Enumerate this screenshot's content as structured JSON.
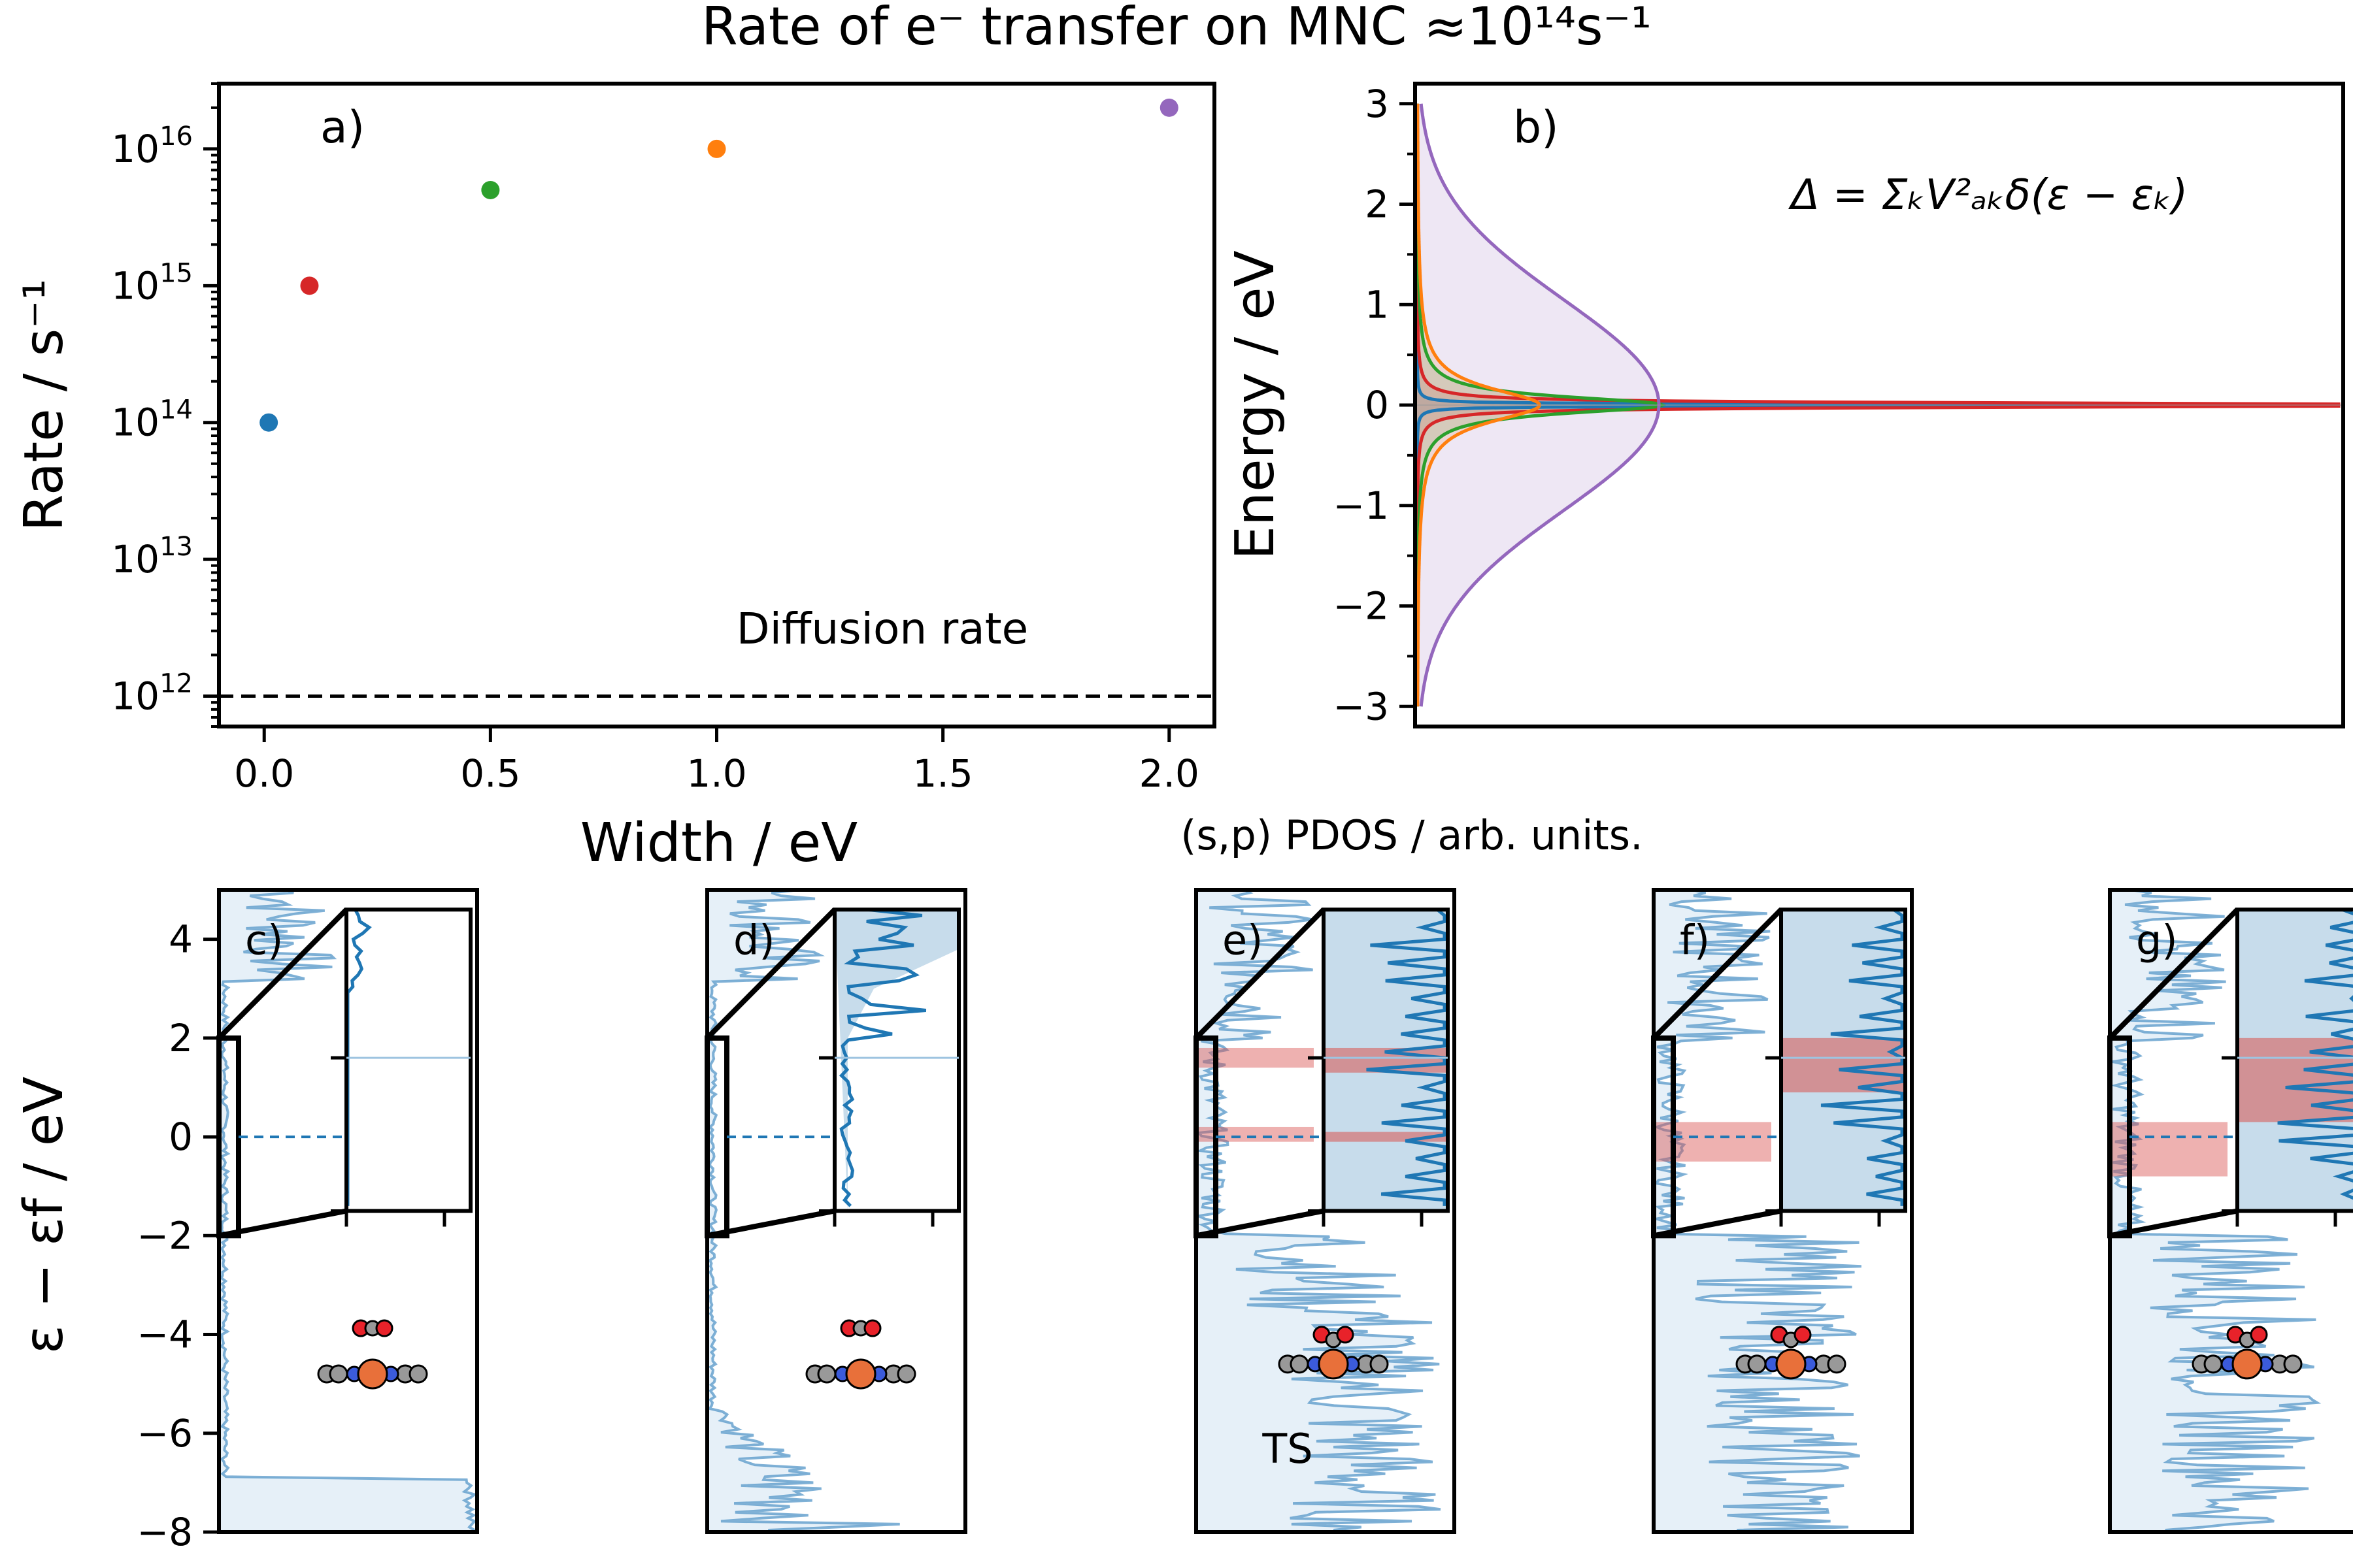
{
  "figure": {
    "title": "Rate of e⁻ transfer on MNC ≈10¹⁴s⁻¹",
    "colors": [
      "#1f77b4",
      "#d62728",
      "#2ca02c",
      "#ff7f0e",
      "#9467bd"
    ],
    "pdos_color": "#4a90c4",
    "highlight_color": "#d9534f"
  },
  "chart_data": [
    {
      "id": "a",
      "type": "scatter",
      "panel_label": "a)",
      "xlabel": "Width / eV",
      "ylabel": "Rate / s⁻¹",
      "yscale": "log",
      "xlim": [
        -0.1,
        2.1
      ],
      "ylim": [
        600000000000.0,
        3e+16
      ],
      "xticks": [
        "0.0",
        "0.5",
        "1.0",
        "1.5",
        "2.0"
      ],
      "yticks": [
        {
          "mantissa": "10",
          "exp": "12",
          "value": 1000000000000.0
        },
        {
          "mantissa": "10",
          "exp": "13",
          "value": 10000000000000.0
        },
        {
          "mantissa": "10",
          "exp": "14",
          "value": 100000000000000.0
        },
        {
          "mantissa": "10",
          "exp": "15",
          "value": 1000000000000000.0
        },
        {
          "mantissa": "10",
          "exp": "16",
          "value": 1e+16
        }
      ],
      "points": [
        {
          "x": 0.01,
          "y": 100000000000000.0,
          "color": "#1f77b4"
        },
        {
          "x": 0.1,
          "y": 1000000000000000.0,
          "color": "#d62728"
        },
        {
          "x": 0.5,
          "y": 5000000000000000.0,
          "color": "#2ca02c"
        },
        {
          "x": 1.0,
          "y": 1e+16,
          "color": "#ff7f0e"
        },
        {
          "x": 2.0,
          "y": 2e+16,
          "color": "#9467bd"
        }
      ],
      "reference_line": {
        "label": "Diffusion rate",
        "y": 1000000000000.0,
        "style": "dashed"
      }
    },
    {
      "id": "b",
      "type": "area",
      "panel_label": "b)",
      "xlabel": "(s,p) PDOS / arb. units.",
      "ylabel": "Energy / eV",
      "ylim": [
        -3.2,
        3.2
      ],
      "yticks": [
        "−3",
        "−2",
        "−1",
        "0",
        "1",
        "2",
        "3"
      ],
      "ytick_values": [
        -3,
        -2,
        -1,
        0,
        1,
        2,
        3
      ],
      "annotation": "Δ = ΣₖV²ₐₖδ(ε − εₖ)",
      "series": [
        {
          "width": 0.01,
          "color": "#1f77b4",
          "shape": "lorentzian"
        },
        {
          "width": 0.1,
          "color": "#d62728",
          "shape": "lorentzian"
        },
        {
          "width": 0.5,
          "color": "#2ca02c",
          "shape": "lorentzian"
        },
        {
          "width": 1.0,
          "color": "#ff7f0e",
          "shape": "lorentzian"
        },
        {
          "width": 2.0,
          "color": "#9467bd",
          "shape": "gaussian"
        }
      ]
    },
    {
      "id": "pdos",
      "type": "area",
      "ylabel": "ε − εf / eV",
      "ylim": [
        -8,
        5
      ],
      "yticks": [
        "4",
        "2",
        "0",
        "−2",
        "−4",
        "−6",
        "−8"
      ],
      "ytick_values": [
        4,
        2,
        0,
        -2,
        -4,
        -6,
        -8
      ],
      "panels": [
        {
          "label": "c)",
          "ts_label": "",
          "highlights": [],
          "inset_highlights": []
        },
        {
          "label": "d)",
          "ts_label": "",
          "highlights": [],
          "inset_highlights": []
        },
        {
          "label": "e)",
          "ts_label": "TS",
          "highlights": [
            [
              1.4,
              1.8
            ],
            [
              -0.1,
              0.2
            ]
          ],
          "inset_highlights": [
            [
              1.3,
              1.8
            ],
            [
              -0.1,
              0.1
            ]
          ]
        },
        {
          "label": "f)",
          "ts_label": "",
          "highlights": [
            [
              -0.5,
              0.3
            ]
          ],
          "inset_highlights": [
            [
              0.9,
              2.0
            ]
          ]
        },
        {
          "label": "g)",
          "ts_label": "",
          "highlights": [
            [
              -0.8,
              0.3
            ]
          ],
          "inset_highlights": [
            [
              0.3,
              2.0
            ]
          ]
        }
      ]
    }
  ]
}
